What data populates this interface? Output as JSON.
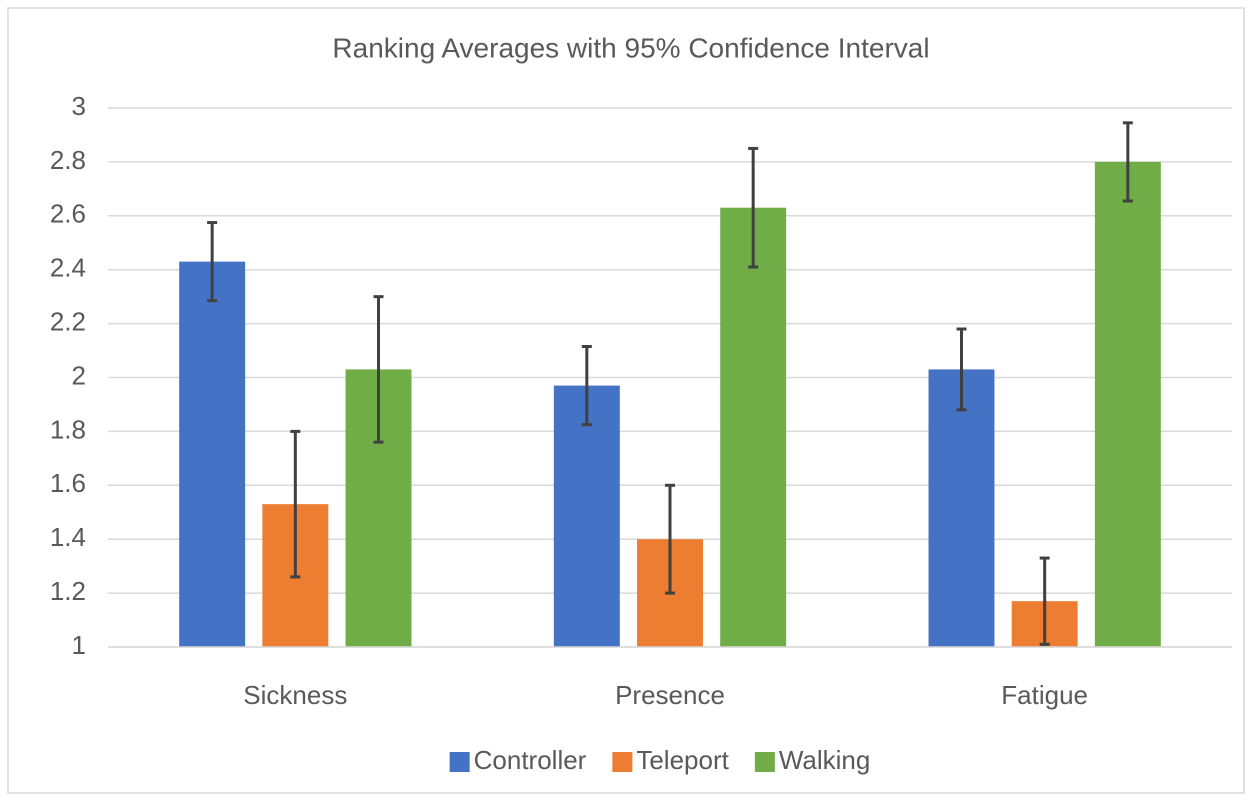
{
  "chart_data": {
    "type": "bar",
    "title": "Ranking Averages with 95% Confidence Interval",
    "categories": [
      "Sickness",
      "Presence",
      "Fatigue"
    ],
    "series": [
      {
        "name": "Controller",
        "color": "#4472c4",
        "values": [
          2.43,
          1.97,
          2.03
        ],
        "errors": [
          0.145,
          0.145,
          0.15
        ]
      },
      {
        "name": "Teleport",
        "color": "#ed7d31",
        "values": [
          1.53,
          1.4,
          1.17
        ],
        "errors": [
          0.27,
          0.2,
          0.16
        ]
      },
      {
        "name": "Walking",
        "color": "#70ad47",
        "values": [
          2.03,
          2.63,
          2.8
        ],
        "errors": [
          0.27,
          0.22,
          0.145
        ]
      }
    ],
    "ylim": [
      1,
      3
    ],
    "yticks": [
      1,
      1.2,
      1.4,
      1.6,
      1.8,
      2,
      2.2,
      2.4,
      2.6,
      2.8,
      3
    ],
    "grid": true,
    "legend": "bottom"
  }
}
